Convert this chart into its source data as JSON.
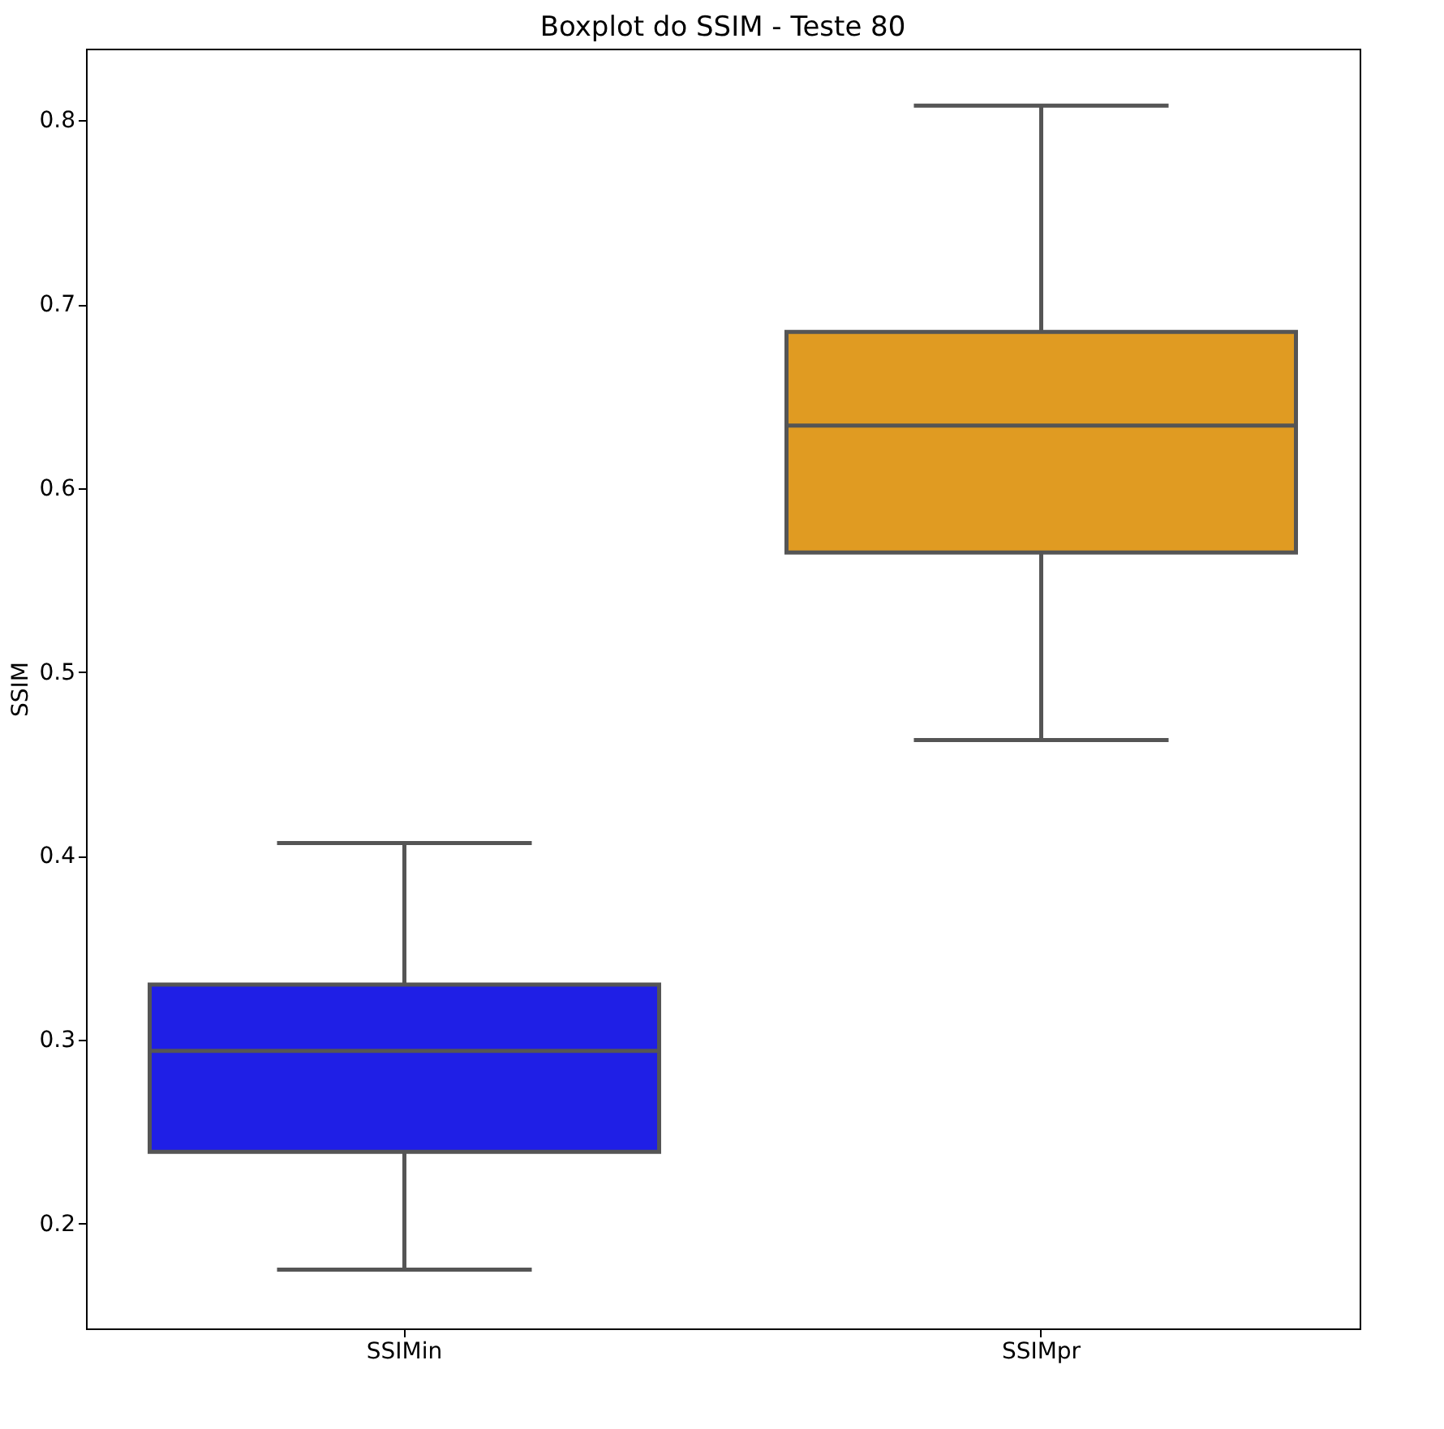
{
  "chart_data": {
    "type": "box",
    "title": "Boxplot do SSIM - Teste 80",
    "ylabel": "SSIM",
    "categories": [
      "SSIMin",
      "SSIMpr"
    ],
    "colors": [
      "#1f1fe6",
      "#e09b22"
    ],
    "boxes": [
      {
        "low": 0.175,
        "q1": 0.239,
        "median": 0.294,
        "q3": 0.33,
        "high": 0.407
      },
      {
        "low": 0.463,
        "q1": 0.565,
        "median": 0.634,
        "q3": 0.685,
        "high": 0.808
      }
    ],
    "ylim": [
      0.143,
      0.839
    ],
    "yticks": [
      0.2,
      0.3,
      0.4,
      0.5,
      0.6,
      0.7,
      0.8
    ],
    "grid": false
  }
}
